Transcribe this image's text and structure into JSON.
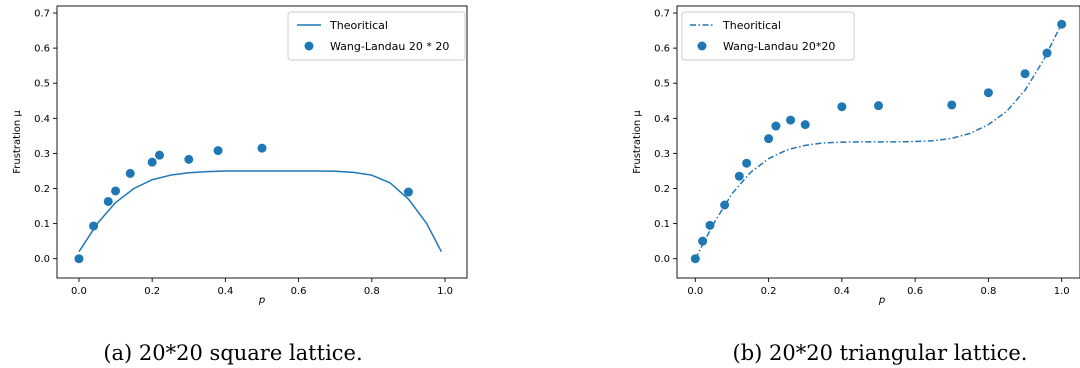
{
  "colors": {
    "series": "#1f77b4"
  },
  "chart_data": [
    {
      "type": "line",
      "caption": "(a) 20*20 square lattice.",
      "xlabel": "p",
      "ylabel": "Frustration μ",
      "xlim": [
        -0.06,
        1.06
      ],
      "ylim": [
        -0.055,
        0.72
      ],
      "xticks": [
        "0.0",
        "0.2",
        "0.4",
        "0.6",
        "0.8",
        "1.0"
      ],
      "yticks": [
        "0.0",
        "0.1",
        "0.2",
        "0.3",
        "0.4",
        "0.5",
        "0.6",
        "0.7"
      ],
      "legend_position": "top-right",
      "grid": false,
      "series": [
        {
          "name": "Theoritical",
          "kind": "line",
          "style": "solid",
          "x": [
            0.0,
            0.05,
            0.1,
            0.15,
            0.2,
            0.25,
            0.3,
            0.35,
            0.4,
            0.45,
            0.5,
            0.55,
            0.6,
            0.65,
            0.7,
            0.75,
            0.8,
            0.85,
            0.9,
            0.95,
            0.99
          ],
          "y": [
            0.02,
            0.1,
            0.16,
            0.2,
            0.225,
            0.238,
            0.245,
            0.248,
            0.25,
            0.25,
            0.25,
            0.25,
            0.25,
            0.25,
            0.249,
            0.246,
            0.238,
            0.216,
            0.17,
            0.1,
            0.02
          ]
        },
        {
          "name": "Wang-Landau 20 * 20",
          "kind": "scatter",
          "x": [
            0.0,
            0.04,
            0.08,
            0.1,
            0.14,
            0.2,
            0.22,
            0.3,
            0.38,
            0.5,
            0.9
          ],
          "y": [
            0.0,
            0.093,
            0.163,
            0.193,
            0.243,
            0.275,
            0.295,
            0.283,
            0.308,
            0.315,
            0.19
          ]
        }
      ]
    },
    {
      "type": "line",
      "caption": "(b) 20*20 triangular lattice.",
      "xlabel": "p",
      "ylabel": "Frustration μ",
      "xlim": [
        -0.05,
        1.05
      ],
      "ylim": [
        -0.055,
        0.72
      ],
      "xticks": [
        "0.0",
        "0.2",
        "0.4",
        "0.6",
        "0.8",
        "1.0"
      ],
      "yticks": [
        "0.0",
        "0.1",
        "0.2",
        "0.3",
        "0.4",
        "0.5",
        "0.6",
        "0.7"
      ],
      "legend_position": "top-left",
      "grid": false,
      "series": [
        {
          "name": "Theoritical",
          "kind": "line",
          "style": "dashdot",
          "x": [
            0.0,
            0.05,
            0.1,
            0.15,
            0.2,
            0.25,
            0.3,
            0.35,
            0.4,
            0.45,
            0.5,
            0.55,
            0.6,
            0.65,
            0.7,
            0.75,
            0.8,
            0.85,
            0.9,
            0.95,
            1.0
          ],
          "y": [
            0.0,
            0.1,
            0.185,
            0.245,
            0.285,
            0.31,
            0.323,
            0.33,
            0.332,
            0.333,
            0.333,
            0.333,
            0.334,
            0.336,
            0.343,
            0.357,
            0.382,
            0.42,
            0.48,
            0.565,
            0.67
          ]
        },
        {
          "name": "Wang-Landau 20*20",
          "kind": "scatter",
          "x": [
            0.0,
            0.02,
            0.04,
            0.08,
            0.12,
            0.14,
            0.2,
            0.22,
            0.26,
            0.3,
            0.4,
            0.5,
            0.7,
            0.8,
            0.9,
            0.96,
            1.0
          ],
          "y": [
            0.0,
            0.05,
            0.095,
            0.153,
            0.235,
            0.272,
            0.342,
            0.378,
            0.395,
            0.382,
            0.433,
            0.436,
            0.438,
            0.473,
            0.527,
            0.586,
            0.668
          ]
        }
      ]
    }
  ]
}
